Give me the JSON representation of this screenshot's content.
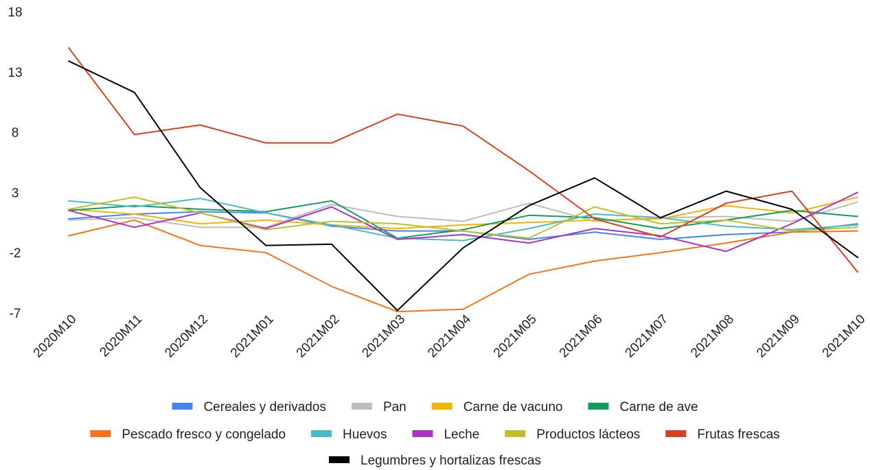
{
  "chart_data": {
    "type": "line",
    "title": "",
    "xlabel": "",
    "ylabel": "",
    "ylim": [
      -7,
      18
    ],
    "yticks": [
      18,
      13,
      8,
      3,
      -2,
      -7
    ],
    "grid": false,
    "legend_position": "bottom",
    "categories": [
      "2020M10",
      "2020M11",
      "2020M12",
      "2021M01",
      "2021M02",
      "2021M03",
      "2021M04",
      "2021M05",
      "2021M06",
      "2021M07",
      "2021M08",
      "2021M09",
      "2021M10"
    ],
    "series": [
      {
        "name": "Cereales y derivados",
        "color": "#4285f4",
        "values": [
          0.8,
          1.2,
          1.4,
          1.3,
          0.2,
          -0.2,
          -0.2,
          -0.9,
          -0.3,
          -0.9,
          -0.5,
          -0.3,
          0.4
        ]
      },
      {
        "name": "Pan",
        "color": "#bdbdbd",
        "values": [
          0.7,
          0.9,
          0.1,
          0.1,
          2.0,
          1.0,
          0.6,
          2.1,
          0.6,
          0.9,
          1.0,
          0.6,
          2.2
        ]
      },
      {
        "name": "Carne de vacuno",
        "color": "#f4b400",
        "values": [
          1.6,
          1.2,
          0.4,
          0.7,
          0.3,
          0.0,
          0.3,
          0.5,
          0.7,
          0.8,
          1.9,
          1.3,
          2.6
        ]
      },
      {
        "name": "Carne de ave",
        "color": "#0f9d58",
        "values": [
          1.5,
          1.9,
          1.6,
          1.4,
          2.3,
          -0.8,
          -0.1,
          1.1,
          0.9,
          0.0,
          0.7,
          1.5,
          1.0
        ]
      },
      {
        "name": "Pescado fresco y congelado",
        "color": "#f97316",
        "values": [
          -0.6,
          0.7,
          -1.4,
          -2.0,
          -4.8,
          -6.9,
          -6.7,
          -3.8,
          -2.7,
          -2.0,
          -1.2,
          -0.3,
          -0.2
        ]
      },
      {
        "name": "Huevos",
        "color": "#46bdc6",
        "values": [
          2.3,
          1.8,
          2.5,
          1.3,
          0.3,
          -0.8,
          -1.0,
          0.0,
          1.2,
          0.9,
          0.2,
          -0.1,
          0.3
        ]
      },
      {
        "name": "Leche",
        "color": "#ab30c4",
        "values": [
          1.5,
          0.1,
          1.3,
          0.0,
          1.8,
          -0.9,
          -0.5,
          -1.2,
          0.0,
          -0.6,
          -1.9,
          0.4,
          3.0
        ]
      },
      {
        "name": "Productos lácteos",
        "color": "#bfbf26",
        "values": [
          1.6,
          2.6,
          1.3,
          -0.1,
          0.6,
          0.4,
          -0.2,
          -0.8,
          1.8,
          0.4,
          0.7,
          -0.2,
          0.1
        ]
      },
      {
        "name": "Frutas frescas",
        "color": "#db3d1f",
        "values": [
          15.0,
          7.8,
          8.6,
          7.1,
          7.1,
          9.5,
          8.5,
          4.8,
          0.8,
          -0.7,
          2.1,
          3.1,
          -3.6
        ]
      },
      {
        "name": "Legumbres y hortalizas frescas",
        "color": "#000000",
        "values": [
          13.9,
          11.3,
          3.4,
          -1.4,
          -1.3,
          -6.8,
          -1.6,
          1.9,
          4.2,
          0.9,
          3.1,
          1.6,
          -2.4
        ]
      }
    ]
  }
}
